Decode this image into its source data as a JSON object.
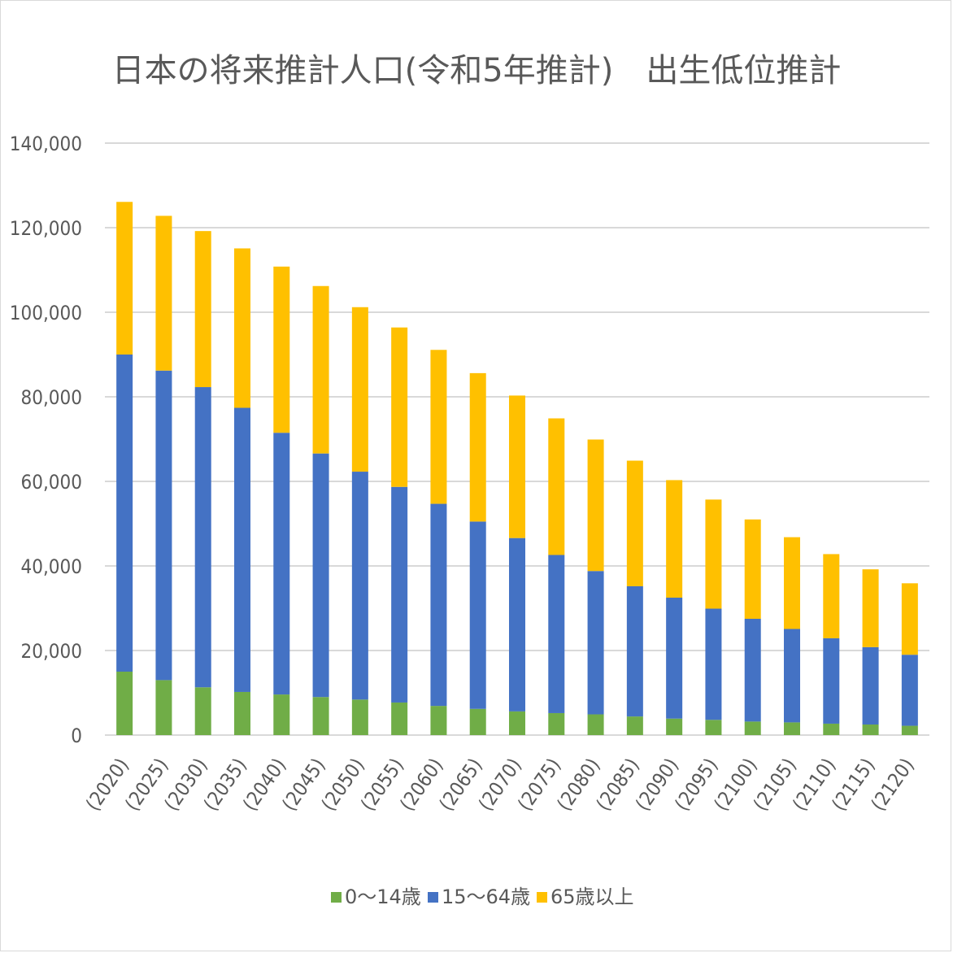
{
  "chart_data": {
    "type": "bar",
    "stacked": true,
    "title": "日本の将来推計人口(令和5年推計)　出生低位推計",
    "categories": [
      "(2020)",
      "(2025)",
      "(2030)",
      "(2035)",
      "(2040)",
      "(2045)",
      "(2050)",
      "(2055)",
      "(2060)",
      "(2065)",
      "(2070)",
      "(2075)",
      "(2080)",
      "(2085)",
      "(2090)",
      "(2095)",
      "(2100)",
      "(2105)",
      "(2110)",
      "(2115)",
      "(2120)"
    ],
    "y_ticks": [
      "0",
      "20,000",
      "40,000",
      "60,000",
      "80,000",
      "100,000",
      "120,000",
      "140,000"
    ],
    "ylim": [
      0,
      140000
    ],
    "grid": true,
    "legend_position": "bottom",
    "series": [
      {
        "name": "0～14歳",
        "color": "#70ad47",
        "values": [
          15000,
          13000,
          11300,
          10200,
          9600,
          9000,
          8400,
          7700,
          6900,
          6200,
          5600,
          5200,
          4900,
          4400,
          3900,
          3600,
          3200,
          3000,
          2700,
          2500,
          2200
        ]
      },
      {
        "name": "15～64歳",
        "color": "#4472c4",
        "values": [
          75000,
          73200,
          71000,
          67200,
          61900,
          57600,
          53900,
          51000,
          47800,
          44300,
          41000,
          37400,
          33900,
          30800,
          28600,
          26300,
          24300,
          22100,
          20200,
          18300,
          16800
        ]
      },
      {
        "name": "65歳以上",
        "color": "#ffc000",
        "values": [
          36100,
          36600,
          36900,
          37700,
          39300,
          39600,
          38900,
          37700,
          36400,
          35100,
          33700,
          32300,
          31100,
          29700,
          27800,
          25800,
          23500,
          21700,
          19900,
          18400,
          16900
        ]
      }
    ]
  }
}
